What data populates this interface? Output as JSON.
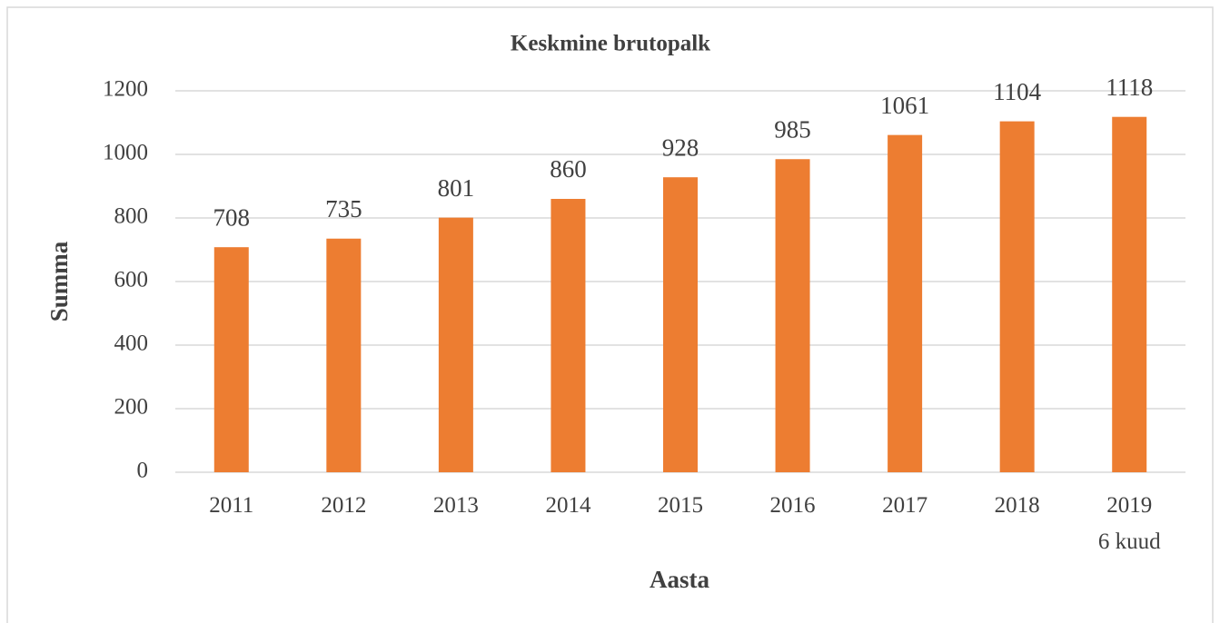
{
  "chart_data": {
    "type": "bar",
    "title": "Keskmine brutopalk",
    "x_label": "Aasta",
    "y_label": "Summa",
    "categories": [
      "2011",
      "2012",
      "2013",
      "2014",
      "2015",
      "2016",
      "2017",
      "2018",
      "2019\n6 kuud"
    ],
    "values": [
      708,
      735,
      801,
      860,
      928,
      985,
      1061,
      1104,
      1118
    ],
    "color": "#ed7d31",
    "ylim": [
      0,
      1200
    ],
    "yticks": [
      0,
      200,
      400,
      600,
      800,
      1000,
      1200
    ],
    "grid": true
  }
}
